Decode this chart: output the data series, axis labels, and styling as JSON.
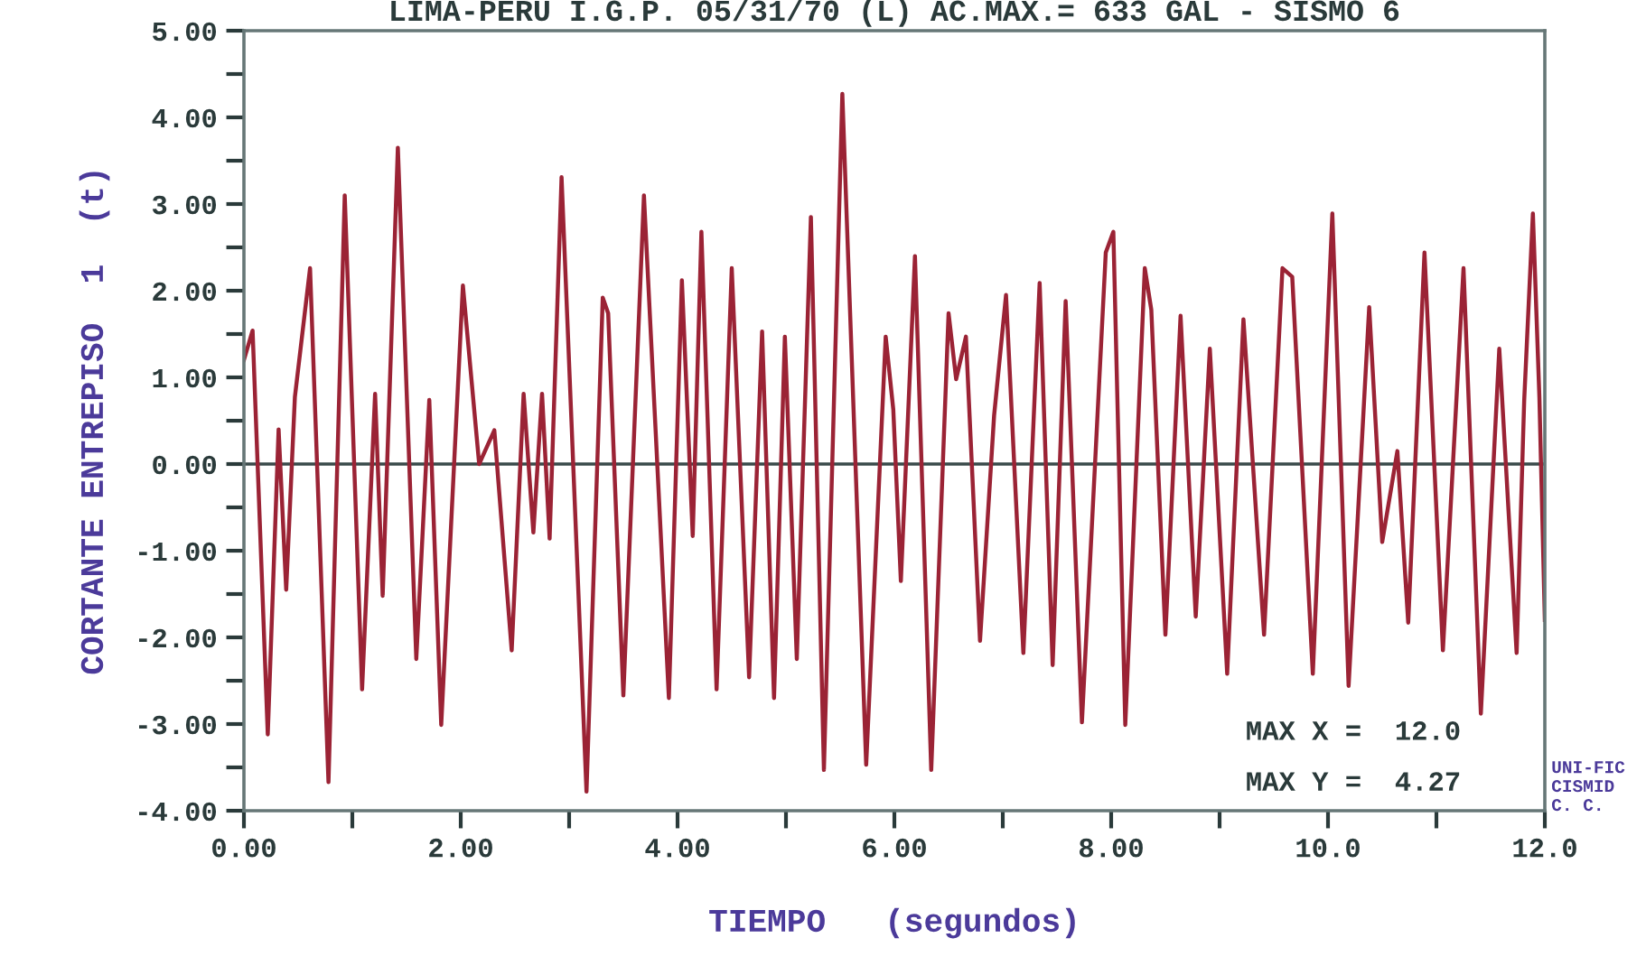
{
  "chart_data": {
    "type": "line",
    "title": "LIMA-PERU I.G.P. 05/31/70 (L) AC.MAX.= 633 GAL - SISMO 6",
    "xlabel": "TIEMPO   (segundos)",
    "ylabel": "CORTANTE ENTREPISO  1  (t)",
    "xlim": [
      0,
      12
    ],
    "ylim": [
      -4,
      5
    ],
    "xticks": [
      {
        "value": 0,
        "label": "0.00"
      },
      {
        "value": 1,
        "label": null
      },
      {
        "value": 2,
        "label": "2.00"
      },
      {
        "value": 3,
        "label": null
      },
      {
        "value": 4,
        "label": "4.00"
      },
      {
        "value": 5,
        "label": null
      },
      {
        "value": 6,
        "label": "6.00"
      },
      {
        "value": 7,
        "label": null
      },
      {
        "value": 8,
        "label": "8.00"
      },
      {
        "value": 9,
        "label": null
      },
      {
        "value": 10,
        "label": "10.0"
      },
      {
        "value": 11,
        "label": null
      },
      {
        "value": 12,
        "label": "12.0"
      }
    ],
    "yticks": [
      {
        "value": -4,
        "label": "-4.00"
      },
      {
        "value": -3.5,
        "label": null
      },
      {
        "value": -3,
        "label": "-3.00"
      },
      {
        "value": -2.5,
        "label": null
      },
      {
        "value": -2,
        "label": "-2.00"
      },
      {
        "value": -1.5,
        "label": null
      },
      {
        "value": -1,
        "label": "-1.00"
      },
      {
        "value": -0.5,
        "label": null
      },
      {
        "value": 0,
        "label": "0.00"
      },
      {
        "value": 0.5,
        "label": null
      },
      {
        "value": 1,
        "label": "1.00"
      },
      {
        "value": 1.5,
        "label": null
      },
      {
        "value": 2,
        "label": "2.00"
      },
      {
        "value": 2.5,
        "label": null
      },
      {
        "value": 3,
        "label": "3.00"
      },
      {
        "value": 3.5,
        "label": null
      },
      {
        "value": 4,
        "label": "4.00"
      },
      {
        "value": 4.5,
        "label": null
      },
      {
        "value": 5,
        "label": "5.00"
      }
    ],
    "grid": false,
    "line_style": "solid",
    "marker": "none",
    "ref_lines": [
      {
        "axis": "y",
        "value": 0,
        "color": "#3a4a4a"
      }
    ],
    "annotations": [
      "MAX X =  12.0",
      "MAX Y =  4.27",
      "UNI-FIC CISMID C. C."
    ],
    "series": [
      {
        "color": "#9b2335",
        "x": [
          0.0,
          0.08,
          0.22,
          0.32,
          0.39,
          0.47,
          0.61,
          0.78,
          0.93,
          1.09,
          1.21,
          1.28,
          1.42,
          1.59,
          1.71,
          1.82,
          2.02,
          2.17,
          2.31,
          2.47,
          2.58,
          2.67,
          2.75,
          2.82,
          2.93,
          3.16,
          3.31,
          3.36,
          3.5,
          3.69,
          3.92,
          4.04,
          4.14,
          4.22,
          4.36,
          4.5,
          4.66,
          4.78,
          4.89,
          4.99,
          5.1,
          5.23,
          5.35,
          5.52,
          5.74,
          5.92,
          5.99,
          6.06,
          6.19,
          6.34,
          6.5,
          6.57,
          6.66,
          6.79,
          6.92,
          7.03,
          7.19,
          7.34,
          7.46,
          7.58,
          7.73,
          7.95,
          8.02,
          8.13,
          8.31,
          8.37,
          8.5,
          8.64,
          8.78,
          8.91,
          9.07,
          9.22,
          9.41,
          9.58,
          9.67,
          9.86,
          10.04,
          10.19,
          10.38,
          10.5,
          10.64,
          10.74,
          10.89,
          11.06,
          11.25,
          11.41,
          11.58,
          11.74,
          11.81,
          11.89,
          11.95,
          12.0
        ],
        "values": [
          1.2,
          1.54,
          -3.12,
          0.4,
          -1.45,
          0.77,
          2.26,
          -3.67,
          3.1,
          -2.6,
          0.81,
          -1.52,
          3.65,
          -2.25,
          0.74,
          -3.01,
          2.06,
          0.0,
          0.39,
          -2.15,
          0.81,
          -0.79,
          0.81,
          -0.86,
          3.31,
          -3.78,
          1.92,
          1.74,
          -2.67,
          3.1,
          -2.7,
          2.12,
          -0.83,
          2.68,
          -2.6,
          2.26,
          -2.46,
          1.53,
          -2.7,
          1.47,
          -2.25,
          2.85,
          -3.53,
          4.27,
          -3.47,
          1.47,
          0.63,
          -1.35,
          2.4,
          -3.53,
          1.74,
          0.98,
          1.47,
          -2.04,
          0.56,
          1.95,
          -2.18,
          2.09,
          -2.32,
          1.88,
          -2.98,
          2.44,
          2.68,
          -3.01,
          2.26,
          1.78,
          -1.97,
          1.71,
          -1.76,
          1.33,
          -2.42,
          1.67,
          -1.97,
          2.26,
          2.16,
          -2.42,
          2.89,
          -2.56,
          1.81,
          -0.9,
          0.15,
          -1.83,
          2.44,
          -2.15,
          2.26,
          -2.88,
          1.33,
          -2.18,
          0.74,
          2.89,
          0.77,
          -1.8
        ]
      }
    ]
  }
}
